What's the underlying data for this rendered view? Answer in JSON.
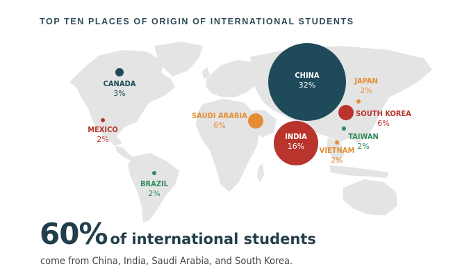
{
  "title": "TOP TEN PLACES OF ORIGIN OF INTERNATIONAL STUDENTS",
  "colors": {
    "dark_teal": "#1f4a5a",
    "red": "#b8342c",
    "orange": "#e48d36",
    "green": "#2f8a5c",
    "land": "#e4e4e4",
    "text_dark": "#233e4b"
  },
  "countries": [
    {
      "id": "china",
      "name": "CHINA",
      "pct": "32%",
      "share": 32,
      "color": "dark_teal"
    },
    {
      "id": "india",
      "name": "INDIA",
      "pct": "16%",
      "share": 16,
      "color": "red"
    },
    {
      "id": "saudi",
      "name": "SAUDI ARABIA",
      "pct": "6%",
      "share": 6,
      "color": "orange"
    },
    {
      "id": "korea",
      "name": "SOUTH KOREA",
      "pct": "6%",
      "share": 6,
      "color": "red"
    },
    {
      "id": "canada",
      "name": "CANADA",
      "pct": "3%",
      "share": 3,
      "color": "dark_teal"
    },
    {
      "id": "japan",
      "name": "JAPAN",
      "pct": "2%",
      "share": 2,
      "color": "orange"
    },
    {
      "id": "taiwan",
      "name": "TAIWAN",
      "pct": "2%",
      "share": 2,
      "color": "green"
    },
    {
      "id": "vietnam",
      "name": "VIETNAM",
      "pct": "2%",
      "share": 2,
      "color": "orange"
    },
    {
      "id": "mexico",
      "name": "MEXICO",
      "pct": "2%",
      "share": 2,
      "color": "red"
    },
    {
      "id": "brazil",
      "name": "BRAZIL",
      "pct": "2%",
      "share": 2,
      "color": "green"
    }
  ],
  "headline": {
    "big": "60%",
    "rest": "of international students"
  },
  "subline": "come from China, India, Saudi Arabia, and South Korea."
}
